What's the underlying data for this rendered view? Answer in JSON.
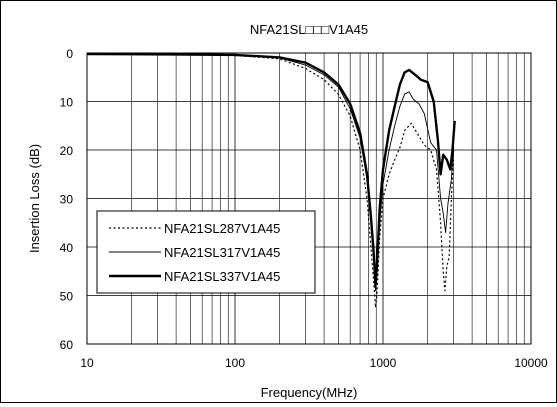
{
  "chart_data": {
    "type": "line",
    "title": "NFA21SL□□□V1A45",
    "xlabel": "Frequency(MHz)",
    "ylabel": "Insertion Loss (dB)",
    "x_scale": "log",
    "xlim": [
      10,
      10000
    ],
    "ylim": [
      0,
      60
    ],
    "y_inverted": true,
    "x_ticks": [
      "10",
      "100",
      "1000",
      "10000"
    ],
    "y_ticks": [
      "0",
      "10",
      "20",
      "30",
      "40",
      "50",
      "60"
    ],
    "grid": true,
    "legend_position": "lower-left",
    "series": [
      {
        "name": "NFA21SL287V1A45",
        "style": "dotted",
        "color": "#000000",
        "points": [
          [
            10,
            0.2
          ],
          [
            50,
            0.3
          ],
          [
            100,
            0.5
          ],
          [
            200,
            1.2
          ],
          [
            300,
            3.2
          ],
          [
            400,
            5.5
          ],
          [
            500,
            8.5
          ],
          [
            600,
            13.0
          ],
          [
            700,
            20.0
          ],
          [
            780,
            30.0
          ],
          [
            830,
            40.0
          ],
          [
            870,
            48.0
          ],
          [
            890,
            52.5
          ],
          [
            910,
            50.0
          ],
          [
            950,
            38.0
          ],
          [
            1000,
            30.0
          ],
          [
            1100,
            25.0
          ],
          [
            1200,
            22.0
          ],
          [
            1300,
            19.5
          ],
          [
            1400,
            16.0
          ],
          [
            1550,
            14.5
          ],
          [
            1700,
            16.5
          ],
          [
            1900,
            19.0
          ],
          [
            2100,
            20.0
          ],
          [
            2300,
            24.0
          ],
          [
            2450,
            35.0
          ],
          [
            2550,
            45.0
          ],
          [
            2620,
            49.0
          ],
          [
            2700,
            44.0
          ],
          [
            2800,
            42.0
          ],
          [
            2900,
            30.0
          ],
          [
            3000,
            20.0
          ]
        ]
      },
      {
        "name": "NFA21SL317V1A45",
        "style": "solid-thin",
        "color": "#000000",
        "points": [
          [
            10,
            0.2
          ],
          [
            50,
            0.3
          ],
          [
            100,
            0.4
          ],
          [
            200,
            1.0
          ],
          [
            300,
            2.5
          ],
          [
            400,
            4.5
          ],
          [
            500,
            7.0
          ],
          [
            600,
            11.5
          ],
          [
            700,
            17.5
          ],
          [
            780,
            26.0
          ],
          [
            830,
            35.0
          ],
          [
            870,
            44.0
          ],
          [
            890,
            49.0
          ],
          [
            910,
            45.0
          ],
          [
            950,
            35.0
          ],
          [
            1000,
            27.0
          ],
          [
            1100,
            20.0
          ],
          [
            1200,
            15.0
          ],
          [
            1300,
            11.0
          ],
          [
            1400,
            8.5
          ],
          [
            1500,
            8.0
          ],
          [
            1600,
            9.5
          ],
          [
            1750,
            10.5
          ],
          [
            1900,
            12.5
          ],
          [
            2100,
            18.5
          ],
          [
            2300,
            20.0
          ],
          [
            2450,
            30.0
          ],
          [
            2550,
            33.0
          ],
          [
            2650,
            37.0
          ],
          [
            2750,
            31.0
          ],
          [
            2900,
            26.0
          ],
          [
            3000,
            19.0
          ]
        ]
      },
      {
        "name": "NFA21SL337V1A45",
        "style": "solid-thick",
        "color": "#000000",
        "points": [
          [
            10,
            0.2
          ],
          [
            50,
            0.3
          ],
          [
            100,
            0.4
          ],
          [
            200,
            0.9
          ],
          [
            300,
            2.0
          ],
          [
            400,
            4.0
          ],
          [
            500,
            6.5
          ],
          [
            600,
            10.5
          ],
          [
            700,
            16.5
          ],
          [
            780,
            25.0
          ],
          [
            830,
            34.0
          ],
          [
            870,
            42.0
          ],
          [
            890,
            48.0
          ],
          [
            910,
            44.0
          ],
          [
            950,
            32.0
          ],
          [
            1000,
            24.0
          ],
          [
            1100,
            16.0
          ],
          [
            1200,
            11.0
          ],
          [
            1300,
            6.5
          ],
          [
            1400,
            4.0
          ],
          [
            1500,
            3.5
          ],
          [
            1650,
            4.5
          ],
          [
            1800,
            5.5
          ],
          [
            2000,
            6.0
          ],
          [
            2200,
            10.0
          ],
          [
            2350,
            18.0
          ],
          [
            2450,
            25.0
          ],
          [
            2550,
            21.0
          ],
          [
            2700,
            22.0
          ],
          [
            2850,
            24.0
          ],
          [
            2950,
            20.0
          ],
          [
            3050,
            14.0
          ]
        ]
      }
    ]
  }
}
